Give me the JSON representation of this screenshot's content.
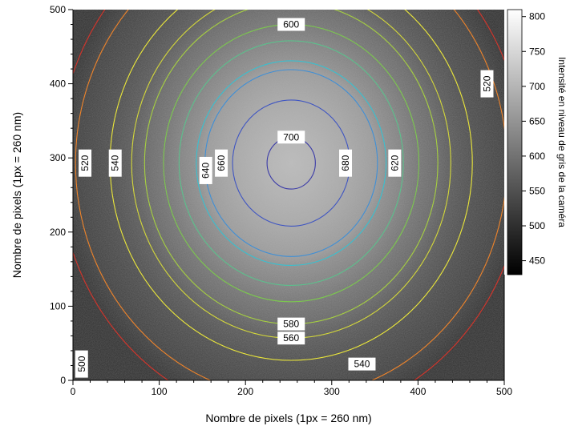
{
  "chart_data": {
    "type": "heatmap",
    "title": "",
    "xlabel": "Nombre de pixels (1px = 260 nm)",
    "ylabel": "Nombre de pixels (1px = 260 nm)",
    "xlim": [
      0,
      500
    ],
    "ylim": [
      0,
      500
    ],
    "x_ticks": [
      "0",
      "100",
      "200",
      "300",
      "400",
      "500"
    ],
    "y_ticks": [
      "0",
      "100",
      "200",
      "300",
      "400",
      "500"
    ],
    "colormap": "grayscale",
    "color_range": [
      430,
      810
    ],
    "colorbar": {
      "label": "Intensité en niveau de gris de la caméra",
      "ticks": [
        "450",
        "500",
        "550",
        "600",
        "650",
        "700",
        "750",
        "800"
      ]
    },
    "peak": {
      "x": 253,
      "y": 293,
      "value": 710
    },
    "contours": [
      {
        "level": 700,
        "color": "#3a3aa8",
        "rx": 28,
        "ry": 35
      },
      {
        "level": 680,
        "color": "#3f55c2",
        "rx": 68,
        "ry": 85
      },
      {
        "level": 660,
        "color": "#3f8fd6",
        "rx": 100,
        "ry": 126
      },
      {
        "level": 640,
        "color": "#38c0d0",
        "rx": 110,
        "ry": 138
      },
      {
        "level": 620,
        "color": "#5cc08c",
        "rx": 130,
        "ry": 165
      },
      {
        "level": 600,
        "color": "#7cc84e",
        "rx": 148,
        "ry": 187
      },
      {
        "level": 580,
        "color": "#a6d040",
        "rx": 170,
        "ry": 217
      },
      {
        "level": 560,
        "color": "#d4d83a",
        "rx": 185,
        "ry": 236
      },
      {
        "level": 540,
        "color": "#ece83a",
        "rx": 210,
        "ry": 266
      },
      {
        "level": 520,
        "color": "#f0842a",
        "rx": 250,
        "ry": 316
      },
      {
        "level": 500,
        "color": "#d8342a",
        "rx": 270,
        "ry": 345
      }
    ],
    "contour_labels": [
      {
        "text": "600",
        "x": 253,
        "y": 480,
        "rotate": false
      },
      {
        "text": "700",
        "x": 253,
        "y": 328,
        "rotate": false
      },
      {
        "text": "580",
        "x": 253,
        "y": 76,
        "rotate": false
      },
      {
        "text": "560",
        "x": 253,
        "y": 57,
        "rotate": false
      },
      {
        "text": "540",
        "x": 335,
        "y": 22,
        "rotate": false
      },
      {
        "text": "520",
        "x": 14,
        "y": 293,
        "rotate": true
      },
      {
        "text": "540",
        "x": 49,
        "y": 293,
        "rotate": true
      },
      {
        "text": "640",
        "x": 154,
        "y": 283,
        "rotate": true
      },
      {
        "text": "660",
        "x": 172,
        "y": 293,
        "rotate": true
      },
      {
        "text": "680",
        "x": 316,
        "y": 293,
        "rotate": true
      },
      {
        "text": "620",
        "x": 373,
        "y": 293,
        "rotate": true
      },
      {
        "text": "520",
        "x": 480,
        "y": 400,
        "rotate": true
      },
      {
        "text": "500",
        "x": 10,
        "y": 22,
        "rotate": true
      }
    ]
  }
}
